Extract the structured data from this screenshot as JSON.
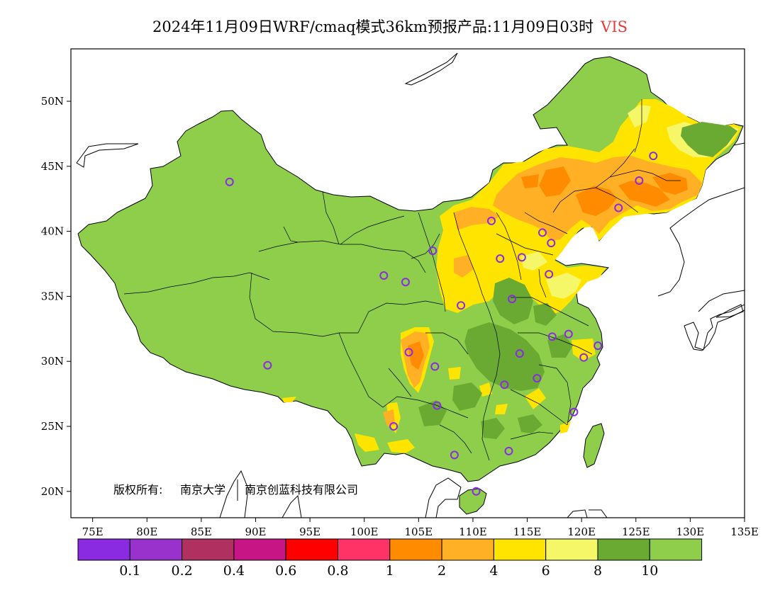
{
  "title": {
    "main": "2024年11月09日WRF/cmaq模式36km预报产品:11月09日03时",
    "variable": "VIS"
  },
  "axes": {
    "lat_labels": [
      "50N",
      "45N",
      "40N",
      "35N",
      "30N",
      "25N",
      "20N"
    ],
    "lon_labels": [
      "75E",
      "80E",
      "85E",
      "90E",
      "95E",
      "100E",
      "105E",
      "110E",
      "115E",
      "120E",
      "125E",
      "130E",
      "135E"
    ],
    "lon_range": [
      73,
      135
    ],
    "lat_range": [
      18,
      54
    ]
  },
  "copyright": {
    "owner_label": "版权所有:",
    "org1": "南京大学",
    "org2": "南京创蓝科技有限公司"
  },
  "colorbar": {
    "colors": [
      "#8a2be2",
      "#9932cc",
      "#b03060",
      "#c71585",
      "#ff0000",
      "#ff3366",
      "#ff8c00",
      "#ffb025",
      "#ffe400",
      "#f5f768",
      "#6aaa33",
      "#8fce4b"
    ],
    "labels": [
      "0.1",
      "0.2",
      "0.4",
      "0.6",
      "0.8",
      "1",
      "2",
      "4",
      "6",
      "8",
      "10"
    ]
  },
  "map": {
    "land_color": "#8fce4b",
    "stations": [
      {
        "name": "urumqi",
        "lon": 87.6,
        "lat": 43.8
      },
      {
        "name": "lhasa",
        "lon": 91.1,
        "lat": 29.7
      },
      {
        "name": "xining",
        "lon": 101.8,
        "lat": 36.6
      },
      {
        "name": "lanzhou",
        "lon": 103.8,
        "lat": 36.1
      },
      {
        "name": "yinchuan",
        "lon": 106.3,
        "lat": 38.5
      },
      {
        "name": "chengdu",
        "lon": 104.1,
        "lat": 30.7
      },
      {
        "name": "chongqing",
        "lon": 106.5,
        "lat": 29.6
      },
      {
        "name": "guiyang",
        "lon": 106.7,
        "lat": 26.6
      },
      {
        "name": "kunming",
        "lon": 102.7,
        "lat": 25.0
      },
      {
        "name": "nanning",
        "lon": 108.3,
        "lat": 22.8
      },
      {
        "name": "haikou",
        "lon": 110.3,
        "lat": 20.0
      },
      {
        "name": "guangzhou",
        "lon": 113.3,
        "lat": 23.1
      },
      {
        "name": "changsha",
        "lon": 112.9,
        "lat": 28.2
      },
      {
        "name": "wuhan",
        "lon": 114.3,
        "lat": 30.6
      },
      {
        "name": "nanchang",
        "lon": 115.9,
        "lat": 28.7
      },
      {
        "name": "fuzhou",
        "lon": 119.3,
        "lat": 26.1
      },
      {
        "name": "hangzhou",
        "lon": 120.2,
        "lat": 30.3
      },
      {
        "name": "shanghai",
        "lon": 121.5,
        "lat": 31.2
      },
      {
        "name": "nanjing",
        "lon": 118.8,
        "lat": 32.1
      },
      {
        "name": "hefei",
        "lon": 117.3,
        "lat": 31.9
      },
      {
        "name": "zhengzhou",
        "lon": 113.6,
        "lat": 34.8
      },
      {
        "name": "xian",
        "lon": 108.9,
        "lat": 34.3
      },
      {
        "name": "taiyuan",
        "lon": 112.5,
        "lat": 37.9
      },
      {
        "name": "shijiazhuang",
        "lon": 114.5,
        "lat": 38.0
      },
      {
        "name": "jinan",
        "lon": 117.0,
        "lat": 36.7
      },
      {
        "name": "tianjin",
        "lon": 117.2,
        "lat": 39.1
      },
      {
        "name": "beijing",
        "lon": 116.4,
        "lat": 39.9
      },
      {
        "name": "hohhot",
        "lon": 111.7,
        "lat": 40.8
      },
      {
        "name": "shenyang",
        "lon": 123.4,
        "lat": 41.8
      },
      {
        "name": "changchun",
        "lon": 125.3,
        "lat": 43.9
      },
      {
        "name": "harbin",
        "lon": 126.6,
        "lat": 45.8
      }
    ]
  }
}
